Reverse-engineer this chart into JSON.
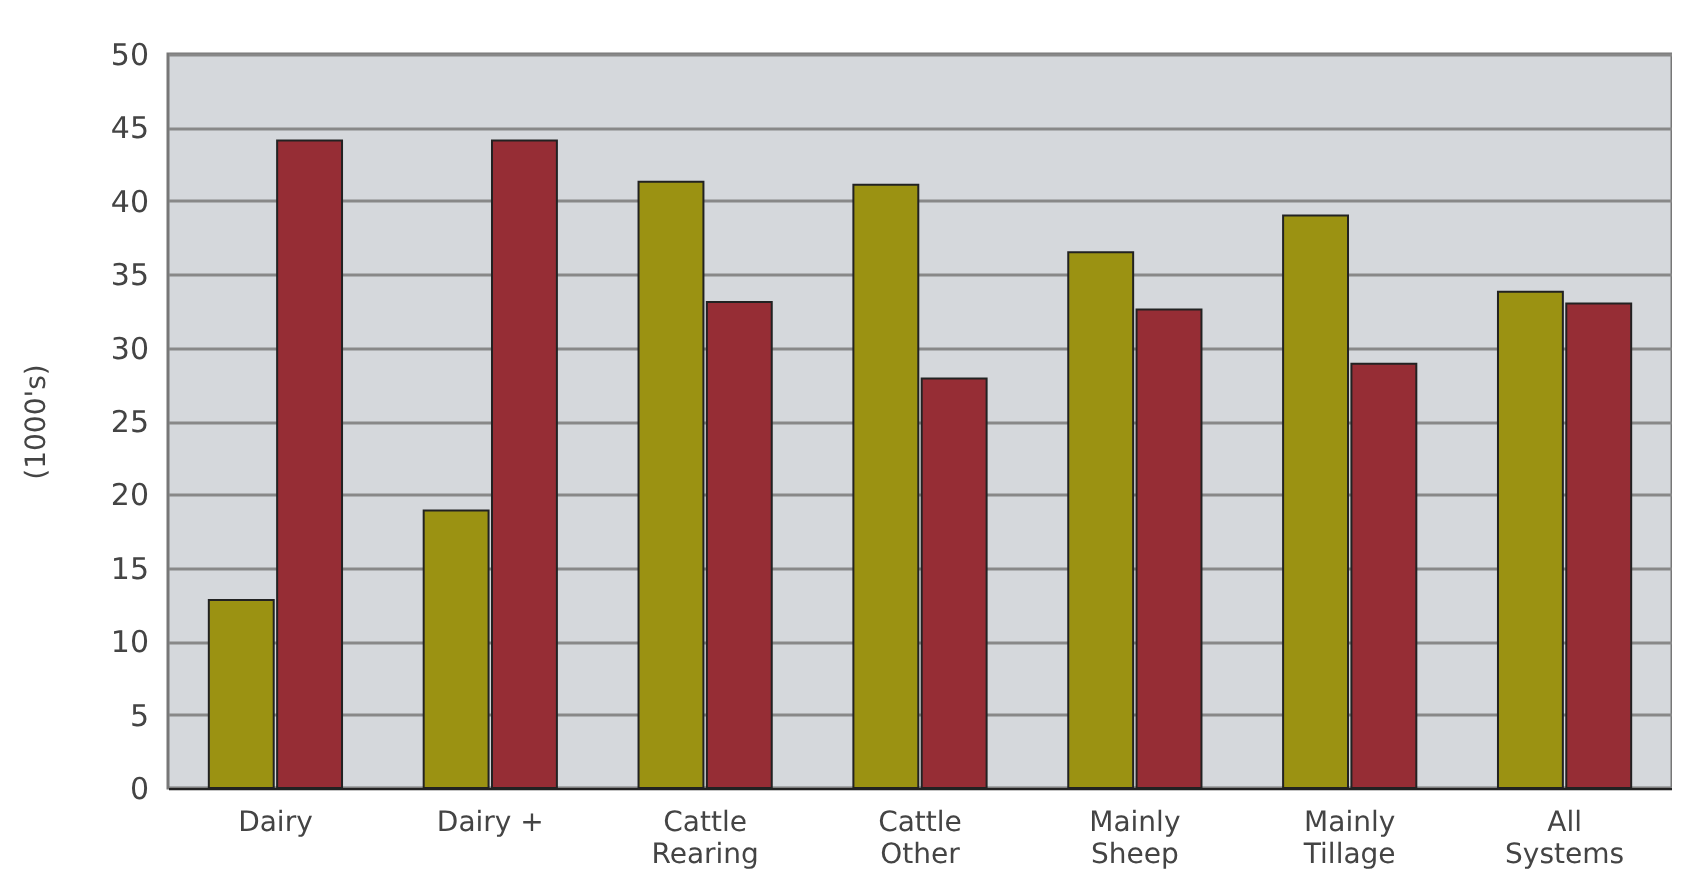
{
  "chart_data": {
    "type": "bar",
    "ylabel": "(1000's)",
    "categories": [
      "Dairy",
      "Dairy +",
      "Cattle\nRearing",
      "Cattle\nOther",
      "Mainly\nSheep",
      "Mainly\nTillage",
      "All\nSystems"
    ],
    "series": [
      {
        "color": "#9b9212",
        "values": [
          12.8,
          18.9,
          41.3,
          41.1,
          36.5,
          39.0,
          33.8
        ]
      },
      {
        "color": "#962d35",
        "values": [
          44.1,
          44.1,
          33.1,
          27.9,
          32.6,
          28.9,
          33.0
        ]
      }
    ],
    "ylim": [
      0,
      50
    ],
    "yticks": [
      0,
      5,
      10,
      15,
      20,
      25,
      30,
      35,
      40,
      45,
      50
    ],
    "grid": "y",
    "legend": false
  }
}
